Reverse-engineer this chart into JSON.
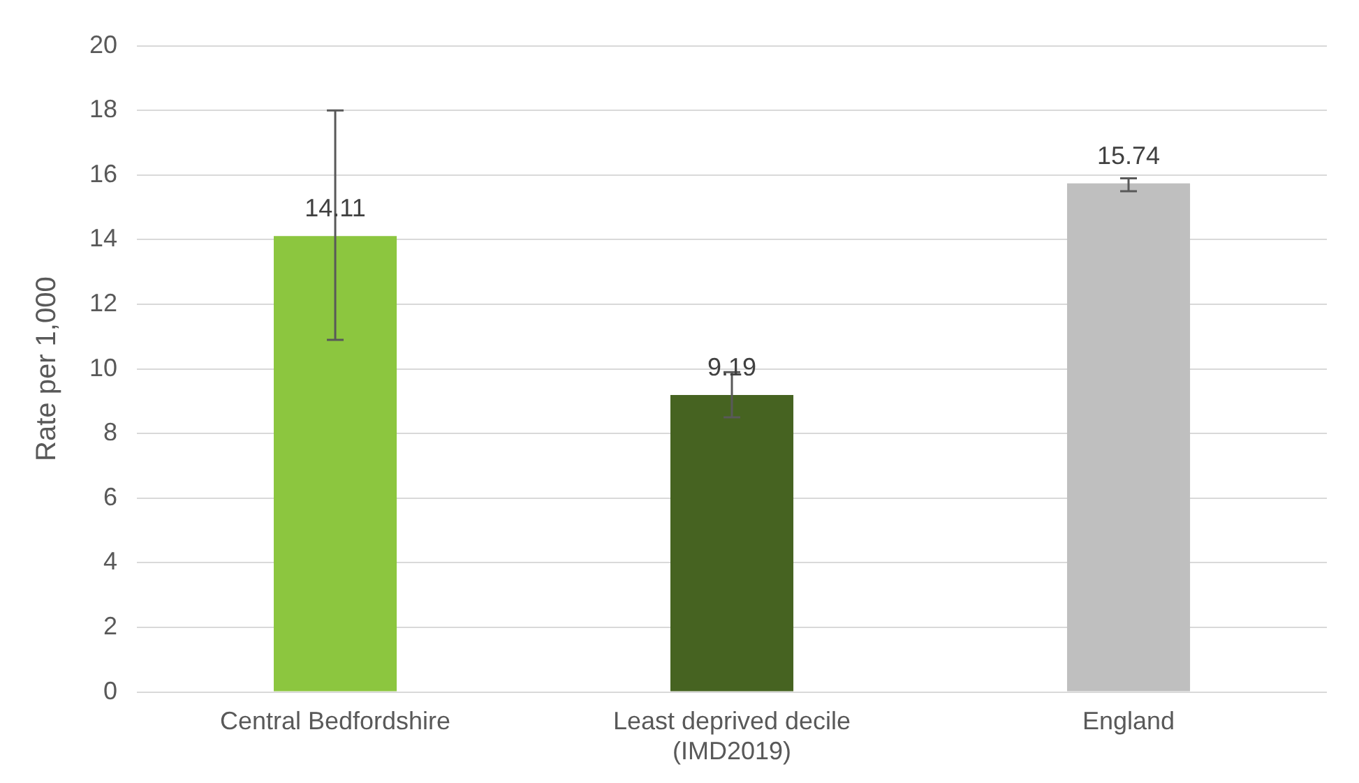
{
  "chart_data": {
    "type": "bar",
    "ylabel": "Rate per 1,000",
    "categories": [
      "Central Bedfordshire",
      "Least deprived decile (IMD2019)",
      "England"
    ],
    "values": [
      14.11,
      9.19,
      15.74
    ],
    "colors": [
      "#8cc63f",
      "#466321",
      "#bfbfbf"
    ],
    "errors": [
      [
        10.9,
        18.0
      ],
      [
        8.5,
        9.9
      ],
      [
        15.5,
        15.9
      ]
    ],
    "data_labels": true,
    "ylim": [
      0,
      20
    ],
    "yticks": [
      0,
      2,
      4,
      6,
      8,
      10,
      12,
      14,
      16,
      18,
      20
    ],
    "grid": "y",
    "legend": false
  }
}
